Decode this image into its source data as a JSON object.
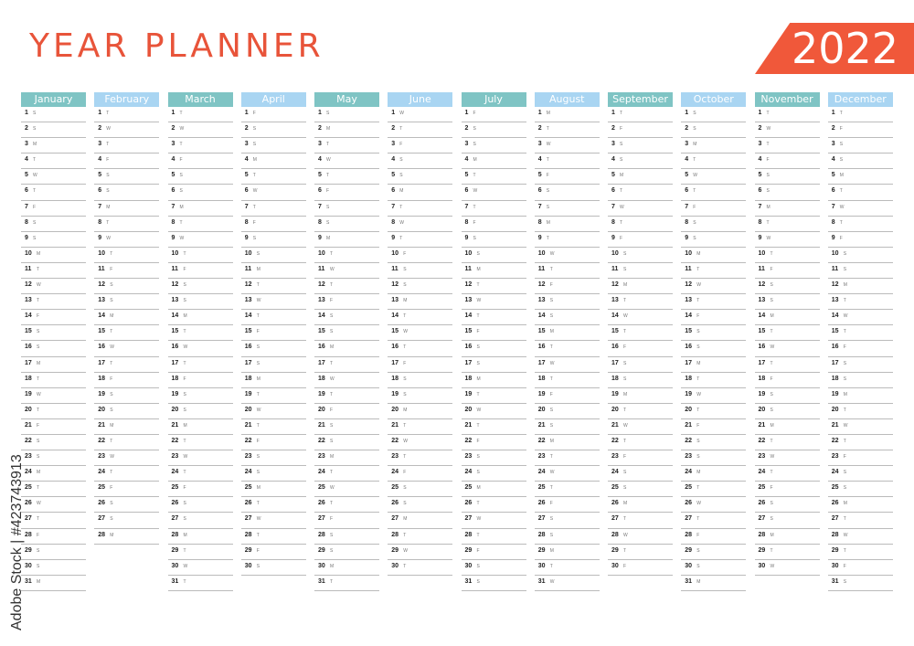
{
  "title": "YEAR PLANNER",
  "year": "2022",
  "watermark": "Adobe Stock | #423743913",
  "colors": {
    "accent": "#e8543a",
    "teal": "#7fc4c4",
    "light_blue": "#a9d5f2"
  },
  "months": [
    {
      "name": "January",
      "days": 31,
      "weekdays": "SSMTWTFSSMTWTFSSMTWTFSSMTWTFSSM"
    },
    {
      "name": "February",
      "days": 28,
      "weekdays": "TWTFSSMTWTFSSMTWTFSSMTWTFSSM"
    },
    {
      "name": "March",
      "days": 31,
      "weekdays": "TWTFSSMTWTFSSMTWTFSSMTWTFSSMTWT"
    },
    {
      "name": "April",
      "days": 30,
      "weekdays": "FSSMTWTFSSMTWTFSSMTWTFSSMTWTFS"
    },
    {
      "name": "May",
      "days": 31,
      "weekdays": "SMTWTFSSMTWTFSSMTWTFSSMTWTFSSMT"
    },
    {
      "name": "June",
      "days": 30,
      "weekdays": "WTFSSMTWTFSSMTWTFSSMTWTFSSMTWT"
    },
    {
      "name": "July",
      "days": 31,
      "weekdays": "FSSMTWTFSSMTWTFSSMTWTFSSMTWTFSS"
    },
    {
      "name": "August",
      "days": 31,
      "weekdays": "MTWTFSSMTWTFSSMTWTFSSMTWTFSSMTW"
    },
    {
      "name": "September",
      "days": 30,
      "weekdays": "TFSSMTWTFSSMTWTFSSMTWTFSSMTWTF"
    },
    {
      "name": "October",
      "days": 31,
      "weekdays": "SSMTWTFSSMTWTFSSMTWTFSSMTWTFSSM"
    },
    {
      "name": "November",
      "days": 30,
      "weekdays": "TWTFSSMTWTFSSMTWTFSSMTWTFSSMTW"
    },
    {
      "name": "December",
      "days": 31,
      "weekdays": "TFSSMTWTFSSMTWTFSSMTWTFSSMTWTFS"
    }
  ]
}
